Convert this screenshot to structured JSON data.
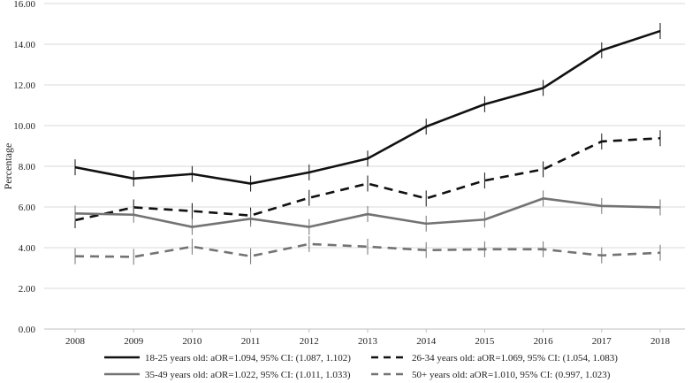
{
  "chart_data": {
    "type": "line",
    "title": "",
    "xlabel": "",
    "ylabel": "Percentage",
    "ylim": [
      0,
      16
    ],
    "yticks": [
      "0.00",
      "2.00",
      "4.00",
      "6.00",
      "8.00",
      "10.00",
      "12.00",
      "14.00",
      "16.00"
    ],
    "categories": [
      "2008",
      "2009",
      "2010",
      "2011",
      "2012",
      "2013",
      "2014",
      "2015",
      "2016",
      "2017",
      "2018"
    ],
    "grid": "horizontal",
    "legend_position": "bottom",
    "error_bars": true,
    "series": [
      {
        "name": "18-25 years old: aOR=1.094, 95% CI: (1.087, 1.102)",
        "color": "#111111",
        "dash": "solid",
        "values": [
          7.95,
          7.4,
          7.62,
          7.15,
          7.7,
          8.38,
          9.95,
          11.05,
          11.85,
          13.7,
          14.65
        ]
      },
      {
        "name": "26-34 years old: aOR=1.069, 95% CI: (1.054, 1.083)",
        "color": "#111111",
        "dash": "dashed",
        "values": [
          5.35,
          5.98,
          5.8,
          5.58,
          6.45,
          7.15,
          6.42,
          7.3,
          7.85,
          9.22,
          9.38
        ]
      },
      {
        "name": "35-49 years old: aOR=1.022, 95% CI: (1.011, 1.033)",
        "color": "#737373",
        "dash": "solid",
        "values": [
          5.68,
          5.62,
          5.02,
          5.42,
          5.02,
          5.65,
          5.18,
          5.38,
          6.42,
          6.05,
          5.98
        ]
      },
      {
        "name": "50+ years old: aOR=1.010, 95% CI: (0.997, 1.023)",
        "color": "#737373",
        "dash": "dashed",
        "values": [
          3.58,
          3.55,
          4.05,
          3.58,
          4.18,
          4.05,
          3.88,
          3.92,
          3.92,
          3.62,
          3.75
        ]
      }
    ]
  }
}
